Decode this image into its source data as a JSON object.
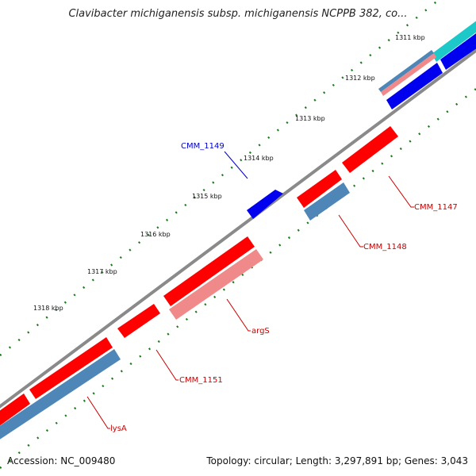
{
  "title": "Clavibacter michiganensis subsp. michiganensis NCPPB 382, co...",
  "footer": {
    "accession": "Accession: NC_009480",
    "summary": "Topology: circular; Length: 3,297,891 bp; Genes: 3,043"
  },
  "ticks": [
    {
      "label": "1311 kbp"
    },
    {
      "label": "1312 kbp"
    },
    {
      "label": "1313 kbp"
    },
    {
      "label": "1314 kbp"
    },
    {
      "label": "1315 kbp"
    },
    {
      "label": "1316 kbp"
    },
    {
      "label": "1317 kbp"
    },
    {
      "label": "1318 kbp"
    }
  ],
  "gene_labels": [
    {
      "text": "CMM_1149",
      "color": "#0000cc"
    },
    {
      "text": "CMM_1147",
      "color": "#cc0000"
    },
    {
      "text": "CMM_1148",
      "color": "#cc0000"
    },
    {
      "text": "argS",
      "color": "#cc0000"
    },
    {
      "text": "CMM_1151",
      "color": "#cc0000"
    },
    {
      "text": "lysA",
      "color": "#cc0000"
    }
  ],
  "colors": {
    "backbone": "#8a8a8a",
    "gene_red": "#ff0000",
    "gene_pink": "#f08a8a",
    "gene_blue": "#0000ee",
    "gene_steel": "#4f86b8",
    "gene_cyan": "#1cc8c8",
    "tick_green": "#1a7a1a"
  }
}
